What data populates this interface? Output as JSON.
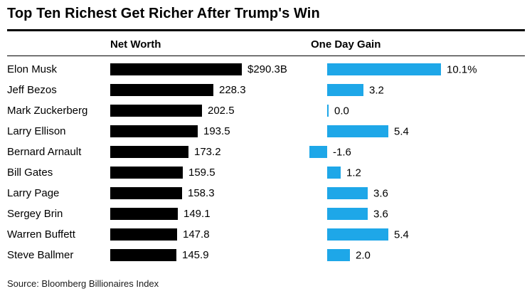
{
  "title": "Top Ten Richest Get Richer After Trump's Win",
  "source": "Source: Bloomberg Billionaires Index",
  "columns": {
    "net_worth": "Net Worth",
    "one_day_gain": "One Day Gain"
  },
  "colors": {
    "bar_black": "#000000",
    "bar_blue": "#1ea7e8"
  },
  "chart_data": {
    "type": "bar",
    "orientation": "horizontal",
    "title": "Top Ten Richest Get Richer After Trump's Win",
    "categories": [
      "Elon Musk",
      "Jeff Bezos",
      "Mark Zuckerberg",
      "Larry Ellison",
      "Bernard Arnault",
      "Bill Gates",
      "Larry Page",
      "Sergey Brin",
      "Warren Buffett",
      "Steve Ballmer"
    ],
    "series": [
      {
        "name": "Net Worth",
        "unit": "billion USD",
        "values": [
          290.3,
          228.3,
          202.5,
          193.5,
          173.2,
          159.5,
          158.3,
          149.1,
          147.8,
          145.9
        ],
        "labels": [
          "$290.3B",
          "228.3",
          "202.5",
          "193.5",
          "173.2",
          "159.5",
          "158.3",
          "149.1",
          "147.8",
          "145.9"
        ]
      },
      {
        "name": "One Day Gain",
        "unit": "percent",
        "values": [
          10.1,
          3.2,
          0.0,
          5.4,
          -1.6,
          1.2,
          3.6,
          3.6,
          5.4,
          2.0
        ],
        "labels": [
          "10.1%",
          "3.2",
          "0.0",
          "5.4",
          "-1.6",
          "1.2",
          "3.6",
          "3.6",
          "5.4",
          "2.0"
        ]
      }
    ],
    "legend": "none",
    "grid": "off"
  }
}
